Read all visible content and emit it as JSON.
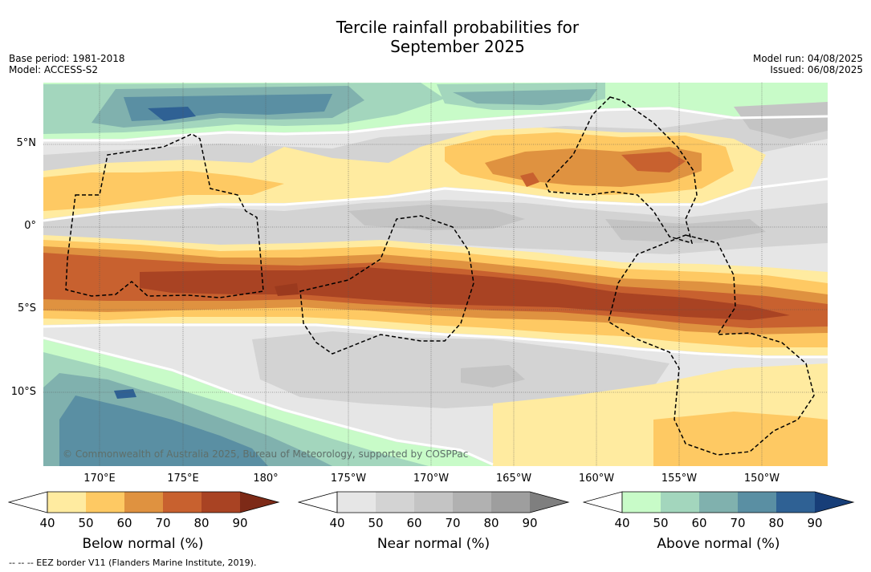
{
  "title": {
    "line1": "Tercile rainfall probabilities for",
    "line2": "September 2025"
  },
  "meta_left": {
    "base_period": "Base period: 1981-2018",
    "model": "Model: ACCESS-S2"
  },
  "meta_right": {
    "model_run": "Model run: 04/08/2025",
    "issued": "Issued: 06/08/2025"
  },
  "map": {
    "lat_labels": [
      "5°N",
      "0°",
      "5°S",
      "10°S"
    ],
    "lon_labels": [
      "170°E",
      "175°E",
      "180°",
      "175°W",
      "170°W",
      "165°W",
      "160°W",
      "155°W",
      "150°W"
    ],
    "copyright": "© Commonwealth of Australia 2025, Bureau of Meteorology, supported by COSPPac"
  },
  "colorbars": {
    "below": {
      "title": "Below normal (%)",
      "ticks": [
        "40",
        "50",
        "60",
        "70",
        "80",
        "90"
      ],
      "colors": [
        "#ffffff",
        "#ffeba0",
        "#fec963",
        "#df9240",
        "#c8612f",
        "#a94323",
        "#7d2a17"
      ]
    },
    "near": {
      "title": "Near normal (%)",
      "ticks": [
        "40",
        "50",
        "60",
        "70",
        "80",
        "90"
      ],
      "colors": [
        "#ffffff",
        "#e6e6e6",
        "#d3d3d3",
        "#c4c4c4",
        "#b1b1b1",
        "#9e9e9e",
        "#7f7f7f"
      ]
    },
    "above": {
      "title": "Above normal (%)",
      "ticks": [
        "40",
        "50",
        "60",
        "70",
        "80",
        "90"
      ],
      "colors": [
        "#ffffff",
        "#c8fbc8",
        "#a3d6bd",
        "#80b1ae",
        "#5a8fa3",
        "#2f6194",
        "#173e78"
      ]
    }
  },
  "footnote": "-- -- -- EEZ border V11 (Flanders Marine Institute, 2019)."
}
